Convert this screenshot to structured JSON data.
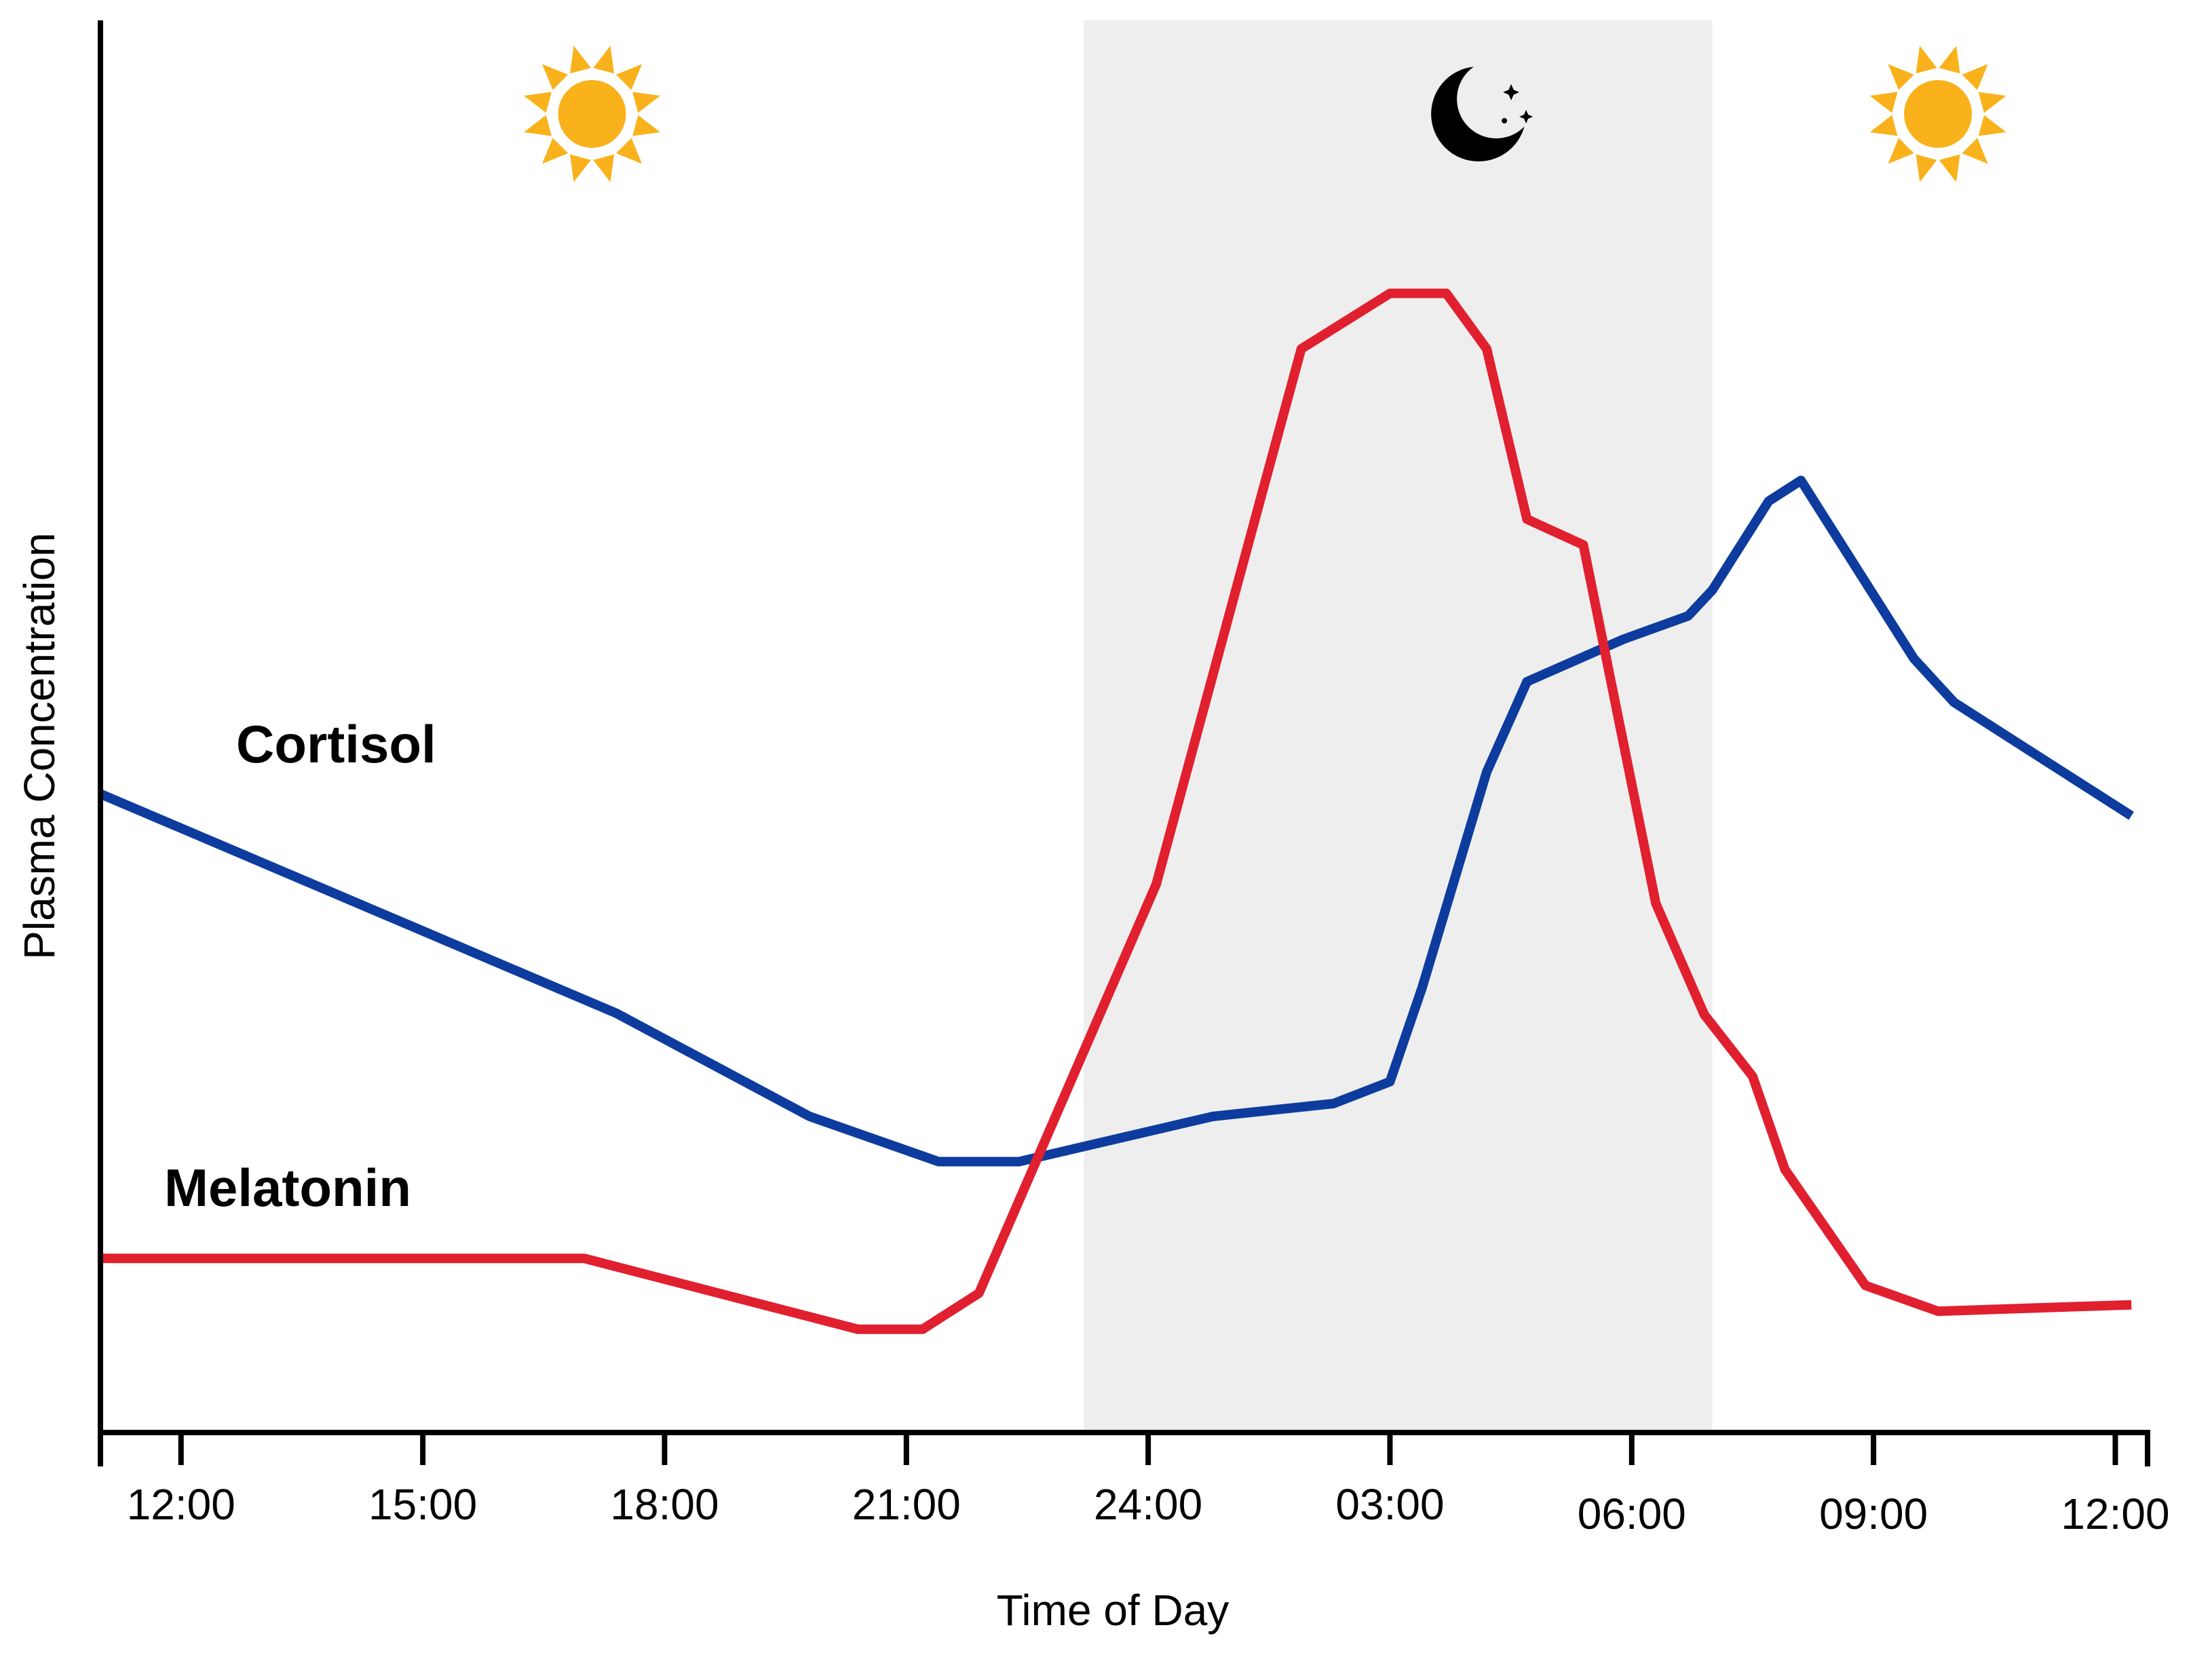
{
  "chart_data": {
    "type": "line",
    "xlabel": "Time of Day",
    "ylabel": "Plasma Concentration",
    "x_ticks": [
      "12:00",
      "15:00",
      "18:00",
      "21:00",
      "24:00",
      "03:00",
      "06:00",
      "09:00",
      "12:00"
    ],
    "x_range_hours": [
      11,
      36.4
    ],
    "y_range": [
      0,
      100
    ],
    "grid": false,
    "legend": "none",
    "night_band": {
      "start_hour": 23.2,
      "end_hour": 31,
      "color": "#eeeeee"
    },
    "icons": [
      {
        "name": "sun-icon",
        "hour": 17.1
      },
      {
        "name": "moon-icon",
        "hour": 28.1
      },
      {
        "name": "sun-icon",
        "hour": 33.8
      }
    ],
    "series": [
      {
        "name": "Cortisol",
        "color": "#0d3c9e",
        "points": [
          [
            11.0,
            49.5
          ],
          [
            17.4,
            32.5
          ],
          [
            19.8,
            24.5
          ],
          [
            21.4,
            21.0
          ],
          [
            22.4,
            21.0
          ],
          [
            24.8,
            24.5
          ],
          [
            26.3,
            25.5
          ],
          [
            27.0,
            27.2
          ],
          [
            27.4,
            34.5
          ],
          [
            28.2,
            51.2
          ],
          [
            28.7,
            58.2
          ],
          [
            29.9,
            61.5
          ],
          [
            30.7,
            63.3
          ],
          [
            31.0,
            65.3
          ],
          [
            31.7,
            72.2
          ],
          [
            32.1,
            73.8
          ],
          [
            33.5,
            60.0
          ],
          [
            34.0,
            56.6
          ],
          [
            36.2,
            47.8
          ]
        ]
      },
      {
        "name": "Melatonin",
        "color": "#e0202f",
        "points": [
          [
            11.0,
            13.5
          ],
          [
            17.0,
            13.5
          ],
          [
            20.4,
            8.0
          ],
          [
            21.2,
            8.0
          ],
          [
            21.9,
            10.8
          ],
          [
            24.1,
            42.5
          ],
          [
            25.4,
            72.5
          ],
          [
            25.9,
            84.0
          ],
          [
            27.0,
            88.3
          ],
          [
            27.7,
            88.3
          ],
          [
            28.2,
            84.0
          ],
          [
            28.7,
            70.8
          ],
          [
            29.4,
            68.8
          ],
          [
            30.3,
            41.0
          ],
          [
            30.9,
            32.4
          ],
          [
            31.5,
            27.6
          ],
          [
            31.9,
            20.4
          ],
          [
            32.9,
            11.4
          ],
          [
            33.8,
            9.4
          ],
          [
            36.2,
            9.9
          ]
        ]
      }
    ],
    "annotations": [
      {
        "text": "Cortisol",
        "series": "Cortisol"
      },
      {
        "text": "Melatonin",
        "series": "Melatonin"
      }
    ]
  }
}
